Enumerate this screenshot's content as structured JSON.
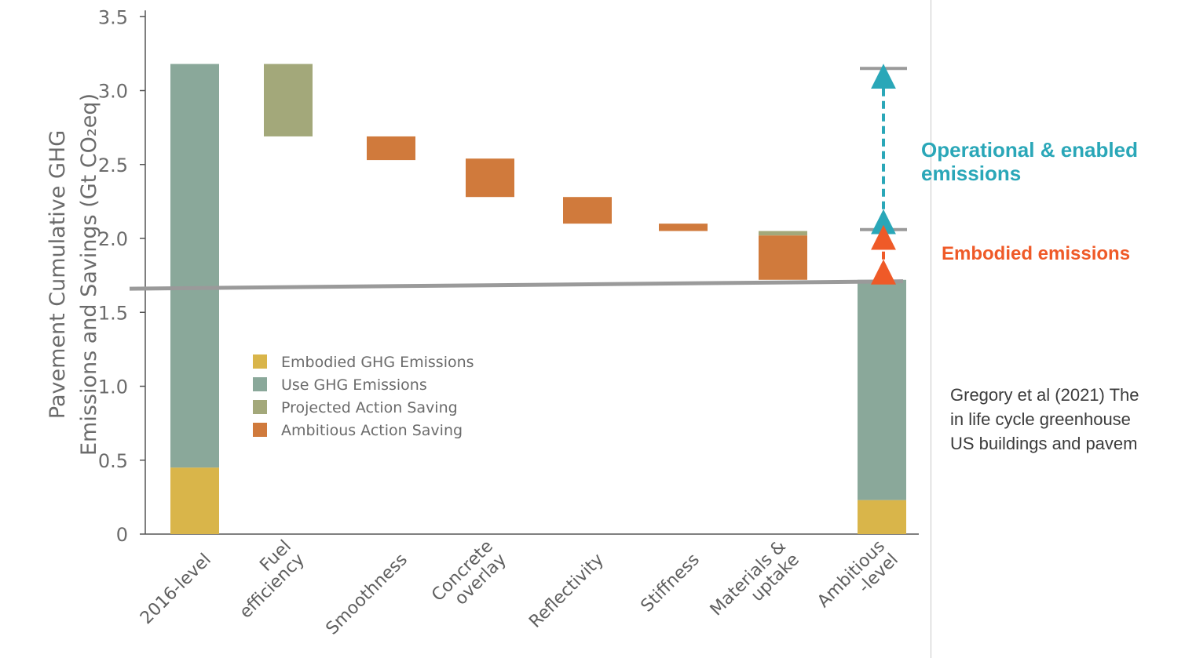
{
  "chart_data": {
    "type": "bar",
    "subtype": "waterfall",
    "ylabel": [
      "Pavement Cumulative GHG",
      "Emissions and Savings (Gt CO₂eq)"
    ],
    "ylim": [
      0,
      3.5
    ],
    "yticks": [
      "0",
      "0.5",
      "1.0",
      "1.5",
      "2.0",
      "2.5",
      "3.0",
      "3.5"
    ],
    "categories": [
      "2016-level",
      "Fuel efficiency",
      "Smoothness",
      "Concrete overlay",
      "Reflectivity",
      "Stiffness",
      "Materials & uptake",
      "Ambitious -level"
    ],
    "category_lines": [
      [
        "2016-level"
      ],
      [
        "Fuel",
        "efficiency"
      ],
      [
        "Smoothness"
      ],
      [
        "Concrete",
        "overlay"
      ],
      [
        "Reflectivity"
      ],
      [
        "Stiffness"
      ],
      [
        "Materials &",
        "uptake"
      ],
      [
        "Ambitious",
        "-level"
      ]
    ],
    "series": [
      {
        "name": "Embodied GHG Emissions",
        "color": "#d9b54a",
        "segments": [
          {
            "category": "2016-level",
            "from": 0,
            "to": 0.45
          },
          {
            "category": "Ambitious -level",
            "from": 0,
            "to": 0.23
          }
        ]
      },
      {
        "name": "Use GHG Emissions",
        "color": "#8aa89a",
        "segments": [
          {
            "category": "2016-level",
            "from": 0.45,
            "to": 3.18
          },
          {
            "category": "Ambitious -level",
            "from": 0.23,
            "to": 1.72
          }
        ]
      },
      {
        "name": "Projected Action Saving",
        "color": "#a3a87a",
        "segments": [
          {
            "category": "Fuel efficiency",
            "from": 2.69,
            "to": 3.18
          },
          {
            "category": "Materials & uptake",
            "from": 2.02,
            "to": 2.05
          }
        ]
      },
      {
        "name": "Ambitious Action Saving",
        "color": "#d07a3c",
        "segments": [
          {
            "category": "Smoothness",
            "from": 2.53,
            "to": 2.69
          },
          {
            "category": "Concrete overlay",
            "from": 2.28,
            "to": 2.54
          },
          {
            "category": "Reflectivity",
            "from": 2.1,
            "to": 2.28
          },
          {
            "category": "Stiffness",
            "from": 2.05,
            "to": 2.1
          },
          {
            "category": "Materials & uptake",
            "from": 1.72,
            "to": 2.02
          }
        ]
      }
    ],
    "reference_line": {
      "from_value": 1.66,
      "to_value": 1.71,
      "color": "#9a9a9a"
    },
    "brackets": [
      {
        "label": "Operational & enabled emissions",
        "from": 2.06,
        "to": 3.15,
        "color": "#2aa7b8"
      },
      {
        "label": "Embodied emissions",
        "from": 1.72,
        "to": 2.06,
        "color": "#ef5a28"
      }
    ],
    "legend": {
      "position": "lower-left inside plot",
      "items": [
        "Embodied GHG Emissions",
        "Use GHG Emissions",
        "Projected Action Saving",
        "Ambitious Action Saving"
      ]
    }
  },
  "annotations": {
    "operational_line1": "Operational & enabled",
    "operational_line2": "emissions",
    "embodied": "Embodied emissions",
    "citation": "Gregory et al (2021) The\nin life cycle greenhouse\nUS buildings and pavem"
  },
  "colors": {
    "operational": "#2aa7b8",
    "embodied": "#ef5a28",
    "axis": "#555555",
    "divider": "#c8c8c8"
  }
}
